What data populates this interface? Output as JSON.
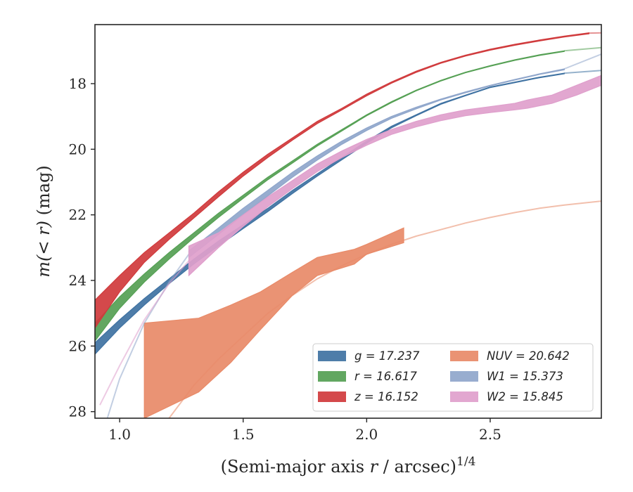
{
  "chart_data": {
    "type": "area",
    "xlabel_main": "(Semi-major axis ",
    "xlabel_var": "r",
    "xlabel_tail": " / arcsec)",
    "xlabel_sup": "1/4",
    "ylabel_main": "m",
    "ylabel_inner": "(< r)",
    "ylabel_tail": " (mag)",
    "xlim": [
      0.9,
      2.95
    ],
    "ylim": [
      28.2,
      16.2
    ],
    "y_inverted": true,
    "xticks": [
      1.0,
      1.5,
      2.0,
      2.5
    ],
    "xtick_labels": [
      "1.0",
      "1.5",
      "2.0",
      "2.5"
    ],
    "yticks": [
      18,
      20,
      22,
      24,
      26,
      28
    ],
    "ytick_labels": [
      "18",
      "20",
      "22",
      "24",
      "26",
      "28"
    ],
    "grid": false,
    "legend_placement": "lower-right",
    "series": [
      {
        "var": "g",
        "total": "17.237",
        "color": "#3f72a2",
        "band_x": [
          0.9,
          1.0,
          1.1,
          1.2,
          1.3,
          1.4,
          1.5,
          1.6,
          1.7,
          1.8,
          1.9,
          2.0,
          2.1,
          2.2,
          2.3,
          2.4,
          2.5,
          2.6,
          2.7,
          2.8
        ],
        "band_lo": [
          25.9,
          25.2,
          24.55,
          23.95,
          23.35,
          22.8,
          22.3,
          21.8,
          21.25,
          20.75,
          20.25,
          19.75,
          19.3,
          18.95,
          18.6,
          18.35,
          18.1,
          17.95,
          17.8,
          17.68
        ],
        "band_hi": [
          26.25,
          25.45,
          24.75,
          24.1,
          23.5,
          22.95,
          22.42,
          21.9,
          21.35,
          20.82,
          20.32,
          19.82,
          19.35,
          18.98,
          18.63,
          18.37,
          18.12,
          17.97,
          17.82,
          17.7
        ],
        "ext_x": [
          2.8,
          2.95
        ],
        "ext_y": [
          17.68,
          17.6
        ]
      },
      {
        "var": "r",
        "total": "16.617",
        "color": "#55a054",
        "band_x": [
          0.9,
          1.0,
          1.1,
          1.2,
          1.3,
          1.4,
          1.5,
          1.6,
          1.7,
          1.8,
          1.9,
          2.0,
          2.1,
          2.2,
          2.3,
          2.4,
          2.5,
          2.6,
          2.7,
          2.8
        ],
        "band_lo": [
          25.3,
          24.5,
          23.8,
          23.15,
          22.55,
          21.95,
          21.4,
          20.85,
          20.35,
          19.85,
          19.4,
          18.95,
          18.55,
          18.2,
          17.9,
          17.65,
          17.45,
          17.27,
          17.12,
          17.0
        ],
        "band_hi": [
          25.85,
          24.85,
          24.05,
          23.35,
          22.7,
          22.08,
          21.5,
          20.93,
          20.42,
          19.9,
          19.44,
          18.98,
          18.58,
          18.22,
          17.92,
          17.67,
          17.47,
          17.29,
          17.14,
          17.02
        ],
        "ext_x": [
          2.8,
          2.95
        ],
        "ext_y": [
          17.0,
          16.9
        ]
      },
      {
        "var": "z",
        "total": "16.152",
        "color": "#d03a3c",
        "band_x": [
          0.9,
          1.0,
          1.1,
          1.2,
          1.3,
          1.4,
          1.5,
          1.6,
          1.7,
          1.8,
          1.9,
          2.0,
          2.1,
          2.2,
          2.3,
          2.4,
          2.5,
          2.6,
          2.7,
          2.8,
          2.9
        ],
        "band_lo": [
          24.6,
          23.85,
          23.15,
          22.55,
          21.95,
          21.3,
          20.7,
          20.15,
          19.65,
          19.15,
          18.75,
          18.32,
          17.95,
          17.62,
          17.35,
          17.13,
          16.95,
          16.8,
          16.67,
          16.55,
          16.45
        ],
        "band_hi": [
          25.45,
          24.35,
          23.45,
          22.75,
          22.1,
          21.45,
          20.82,
          20.25,
          19.72,
          19.22,
          18.8,
          18.37,
          17.99,
          17.66,
          17.38,
          17.16,
          16.98,
          16.83,
          16.7,
          16.58,
          16.48
        ],
        "ext_x": [
          2.9,
          2.95
        ],
        "ext_y": [
          16.46,
          16.45
        ]
      },
      {
        "var": "NUV",
        "total": "20.642",
        "color": "#e88a68",
        "band_x": [
          1.1,
          1.32,
          1.45,
          1.57,
          1.7,
          1.8,
          1.95,
          2.0,
          2.15
        ],
        "band_lo": [
          25.3,
          25.15,
          24.75,
          24.35,
          23.75,
          23.3,
          23.05,
          22.9,
          22.4
        ],
        "band_hi": [
          28.2,
          27.4,
          26.5,
          25.5,
          24.45,
          23.85,
          23.5,
          23.2,
          22.85
        ],
        "ext_x": [
          1.2,
          1.3,
          1.4,
          1.5,
          1.6,
          1.7,
          1.8,
          1.9,
          2.0,
          2.1,
          2.2,
          2.3,
          2.4,
          2.5,
          2.6,
          2.7,
          2.8,
          2.95
        ],
        "ext_y": [
          28.2,
          27.2,
          26.4,
          25.7,
          25.0,
          24.45,
          23.95,
          23.55,
          23.2,
          22.9,
          22.65,
          22.45,
          22.25,
          22.08,
          21.93,
          21.8,
          21.7,
          21.58
        ]
      },
      {
        "var": "W1",
        "total": "15.373",
        "color": "#8fa6cb",
        "band_x": [
          1.28,
          1.4,
          1.5,
          1.6,
          1.7,
          1.8,
          1.9,
          2.0,
          2.1,
          2.2,
          2.3,
          2.4,
          2.5,
          2.6,
          2.7,
          2.8
        ],
        "band_lo": [
          23.1,
          22.4,
          21.8,
          21.25,
          20.7,
          20.2,
          19.75,
          19.35,
          19.0,
          18.72,
          18.47,
          18.25,
          18.05,
          17.87,
          17.7,
          17.55
        ],
        "band_hi": [
          23.3,
          22.6,
          22.0,
          21.42,
          20.85,
          20.33,
          19.85,
          19.43,
          19.06,
          18.77,
          18.5,
          18.28,
          18.07,
          17.89,
          17.72,
          17.58
        ],
        "ext_x": [
          0.95,
          1.0,
          1.1,
          1.2,
          1.28
        ],
        "ext_y": [
          28.2,
          27.0,
          25.3,
          24.05,
          23.2
        ],
        "ext2_x": [
          2.8,
          2.95
        ],
        "ext2_y": [
          17.55,
          17.1
        ]
      },
      {
        "var": "W2",
        "total": "15.845",
        "color": "#df9fcc",
        "band_x": [
          1.28,
          1.4,
          1.5,
          1.6,
          1.7,
          1.8,
          1.9,
          2.0,
          2.1,
          2.2,
          2.3,
          2.4,
          2.5,
          2.6,
          2.65,
          2.75,
          2.85,
          2.95
        ],
        "band_lo": [
          22.95,
          22.55,
          22.0,
          21.45,
          20.95,
          20.45,
          20.05,
          19.7,
          19.4,
          19.15,
          18.95,
          18.8,
          18.7,
          18.6,
          18.5,
          18.35,
          18.05,
          17.75
        ],
        "band_hi": [
          23.85,
          23.0,
          22.35,
          21.75,
          21.2,
          20.68,
          20.25,
          19.88,
          19.55,
          19.32,
          19.13,
          18.98,
          18.88,
          18.8,
          18.75,
          18.6,
          18.35,
          18.05
        ],
        "ext_x": [
          0.92,
          1.0,
          1.1,
          1.2,
          1.28
        ],
        "ext_y": [
          27.8,
          26.6,
          25.2,
          24.1,
          23.4
        ]
      }
    ]
  }
}
